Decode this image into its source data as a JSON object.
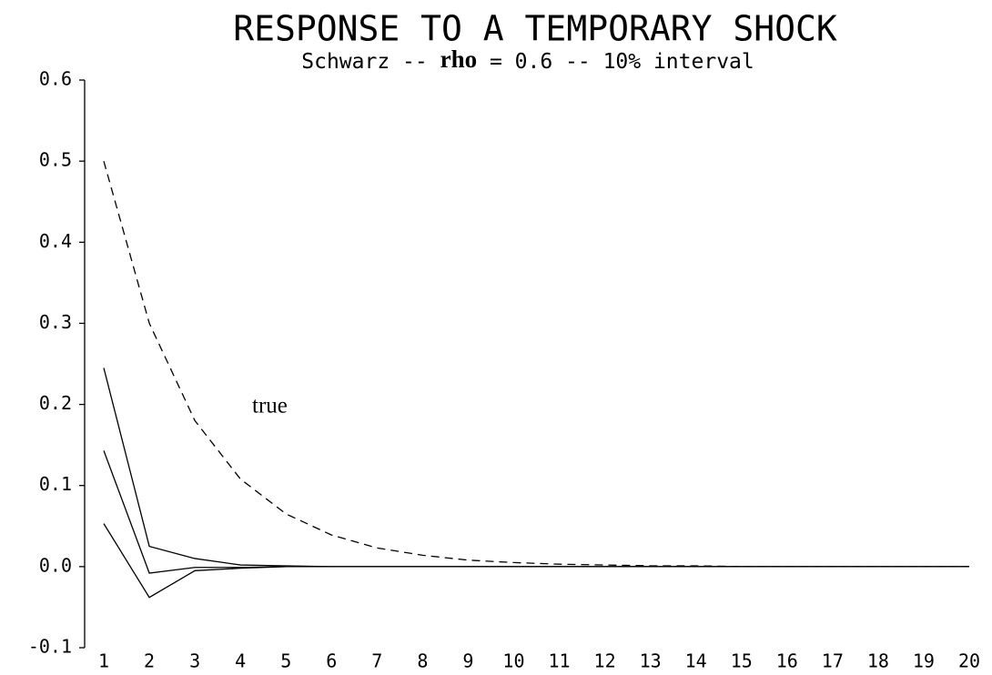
{
  "chart_data": {
    "type": "line",
    "title": "RESPONSE TO A TEMPORARY SHOCK",
    "subtitle": [
      "Schwarz -- ",
      "rho",
      " = 0.6 -- 10% interval"
    ],
    "annotations": [
      "true"
    ],
    "x": [
      1,
      2,
      3,
      4,
      5,
      6,
      7,
      8,
      9,
      10,
      11,
      12,
      13,
      14,
      15,
      16,
      17,
      18,
      19,
      20
    ],
    "xlim": [
      0.58,
      20.2
    ],
    "xticks": [
      1,
      2,
      3,
      4,
      5,
      6,
      7,
      8,
      9,
      10,
      11,
      12,
      13,
      14,
      15,
      16,
      17,
      18,
      19,
      20
    ],
    "ylim": [
      -0.1,
      0.6
    ],
    "yticks": [
      {
        "value": -0.1,
        "label": "-0.1"
      },
      {
        "value": 0,
        "label": "0.0"
      },
      0.1,
      0.2,
      0.3,
      0.4,
      0.5,
      0.6
    ],
    "series": [
      {
        "color": "#000000",
        "dash": true,
        "values": [
          0.5,
          0.3,
          0.18,
          0.108,
          0.065,
          0.039,
          0.023,
          0.014,
          0.008,
          0.005,
          0.003,
          0.002,
          0.001,
          0.001,
          0,
          0,
          0,
          0,
          0,
          0
        ]
      },
      {
        "color": "#000000",
        "values": [
          0.245,
          0.025,
          0.01,
          0.002,
          0.001,
          0,
          0,
          0,
          0,
          0,
          0,
          0,
          0,
          0,
          0,
          0,
          0,
          0,
          0,
          0
        ]
      },
      {
        "color": "#000000",
        "values": [
          0.143,
          -0.008,
          -0.001,
          -0.001,
          0,
          0,
          0,
          0,
          0,
          0,
          0,
          0,
          0,
          0,
          0,
          0,
          0,
          0,
          0,
          0
        ]
      },
      {
        "color": "#000000",
        "values": [
          0.053,
          -0.038,
          -0.005,
          -0.002,
          0,
          0,
          0,
          0,
          0,
          0,
          0,
          0,
          0,
          0,
          0,
          0,
          0,
          0,
          0,
          0
        ]
      }
    ]
  }
}
